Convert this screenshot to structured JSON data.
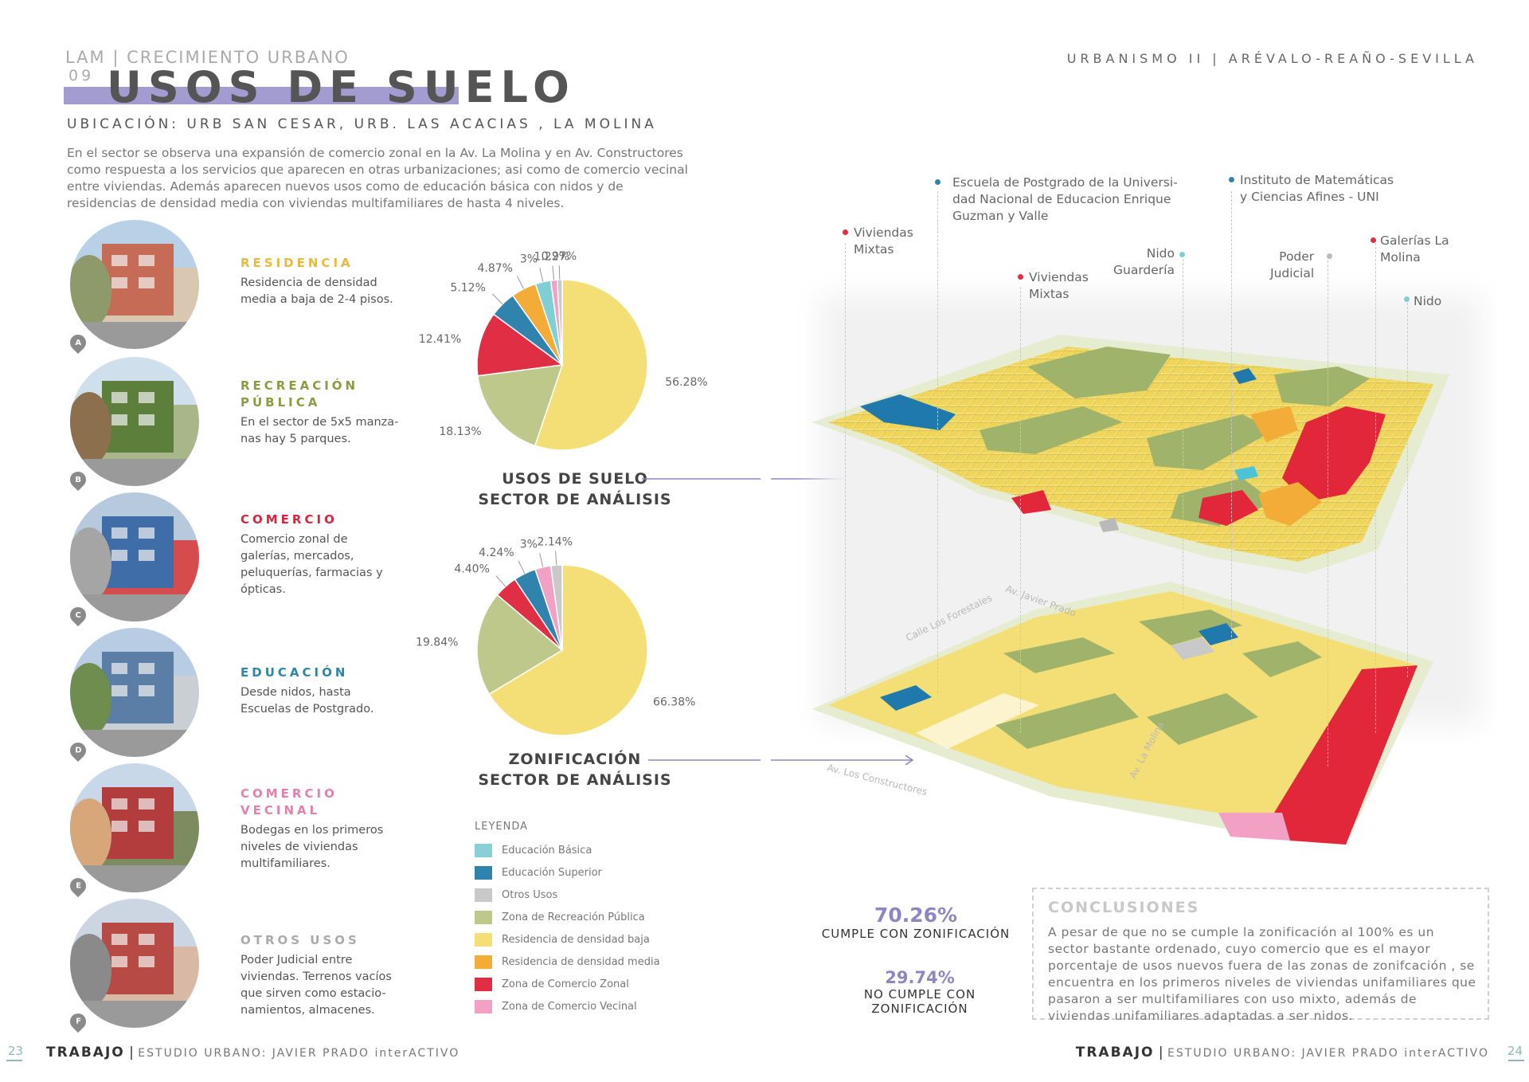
{
  "header": {
    "kicker": "LAM | CRECIMIENTO URBANO",
    "number": "09",
    "title": "USOS DE SUELO",
    "top_right": "URBANISMO II | ARÉVALO-REAÑO-SEVILLA",
    "location": "UBICACIÓN: URB SAN CESAR, URB. LAS ACACIAS , LA MOLINA",
    "intro": "En el sector se observa una expansión de comercio zonal en la Av. La Molina y en Av. Constructores como respuesta a los servicios que aparecen en otras urbanizaciones; asi como de comercio vecinal entre viviendas. Además aparecen nuevos usos como de educación básica con nidos y de residencias de densidad media con viviendas multifamiliares de hasta 4 niveles."
  },
  "categories": [
    {
      "marker": "A",
      "head": [
        "RESIDENCIA"
      ],
      "text": [
        "Residencia de densidad",
        "media a baja de 2-4 pisos."
      ],
      "color": "#e9b93a"
    },
    {
      "marker": "B",
      "head": [
        "RECREACIÓN",
        "PÚBLICA"
      ],
      "text": [
        "En el sector de 5x5 manza-",
        "nas hay 5 parques."
      ],
      "color": "#8e9a3f"
    },
    {
      "marker": "C",
      "head": [
        "COMERCIO"
      ],
      "text": [
        "Comercio zonal de",
        "galerías, mercados,",
        "peluquerías, farmacias y",
        "ópticas."
      ],
      "color": "#d5263e"
    },
    {
      "marker": "D",
      "head": [
        "EDUCACIÓN"
      ],
      "text": [
        "Desde nidos, hasta",
        "Escuelas de Postgrado."
      ],
      "color": "#2d86a8"
    },
    {
      "marker": "E",
      "head": [
        "COMERCIO",
        "VECINAL"
      ],
      "text": [
        "Bodegas en los primeros",
        "niveles de viviendas",
        "multifamiliares."
      ],
      "color": "#e57fab"
    },
    {
      "marker": "F",
      "head": [
        "OTROS USOS"
      ],
      "text": [
        "Poder Judicial entre",
        "viviendas. Terrenos vacíos",
        "que sirven como estacio-",
        "namientos, almacenes."
      ],
      "color": "#aaaaaa"
    }
  ],
  "chart_data": [
    {
      "type": "pie",
      "title": "USOS DE SUELO SECTOR DE ANÁLISIS",
      "title_lines": [
        "USOS DE SUELO",
        "SECTOR DE ANÁLISIS"
      ],
      "slices": [
        {
          "label": "56.28%",
          "value": 56.28,
          "color": "#f4df76"
        },
        {
          "label": "18.13%",
          "value": 18.13,
          "color": "#bdc88a"
        },
        {
          "label": "12.41%",
          "value": 12.41,
          "color": "#e02f45"
        },
        {
          "label": "5.12%",
          "value": 5.12,
          "color": "#2f83ad"
        },
        {
          "label": "4.87%",
          "value": 4.87,
          "color": "#f3ac37"
        },
        {
          "label": "3%",
          "value": 3.0,
          "color": "#7fcfd4"
        },
        {
          "label": "1.22%",
          "value": 1.22,
          "color": "#f2a1c4"
        },
        {
          "label": "0.97%",
          "value": 0.97,
          "color": "#c9c9c9"
        }
      ]
    },
    {
      "type": "pie",
      "title": "ZONIFICACIÓN SECTOR DE ANÁLISIS",
      "title_lines": [
        "ZONIFICACIÓN",
        "SECTOR DE ANÁLISIS"
      ],
      "slices": [
        {
          "label": "66.38%",
          "value": 66.38,
          "color": "#f4df76"
        },
        {
          "label": "19.84%",
          "value": 19.84,
          "color": "#bdc88a"
        },
        {
          "label": "4.40%",
          "value": 4.4,
          "color": "#e02f45"
        },
        {
          "label": "4.24%",
          "value": 4.24,
          "color": "#2f83ad"
        },
        {
          "label": "3%",
          "value": 3.0,
          "color": "#f2a1c4"
        },
        {
          "label": "2.14%",
          "value": 2.14,
          "color": "#c9c9c9"
        }
      ]
    }
  ],
  "legend": {
    "head": "LEYENDA",
    "items": [
      {
        "label": "Educación Básica",
        "color": "#88cfd6"
      },
      {
        "label": "Educación Superior",
        "color": "#2f83ad"
      },
      {
        "label": "Otros Usos",
        "color": "#c9c9c9"
      },
      {
        "label": "Zona de Recreación Pública",
        "color": "#bdc88a"
      },
      {
        "label": "Residencia de densidad baja",
        "color": "#f4df76"
      },
      {
        "label": "Residencia de densidad media",
        "color": "#f3ac37"
      },
      {
        "label": "Zona de Comercio Zonal",
        "color": "#e02f45"
      },
      {
        "label": "Zona de Comercio Vecinal",
        "color": "#f2a1c4"
      }
    ]
  },
  "map": {
    "labels": {
      "viviendas_mixtas_1": [
        "Viviendas",
        "Mixtas"
      ],
      "escuela": [
        "Escuela de Postgrado de la Universi-",
        "dad Nacional de Educacion Enrique",
        "Guzman y Valle"
      ],
      "viviendas_mixtas_2": [
        "Viviendas",
        "Mixtas"
      ],
      "nido_guarderia": [
        "Nido",
        "Guardería"
      ],
      "instituto": [
        "Instituto de Matemáticas",
        "y Ciencias Afines - UNI"
      ],
      "poder_judicial": [
        "Poder",
        "Judicial"
      ],
      "galerias": [
        "Galerías La",
        "Molina"
      ],
      "nido": [
        "Nido"
      ]
    },
    "streets": {
      "los_forestales": "Calle Los Forestales",
      "javier_prado": "Av. Javier Prado",
      "la_molina": "Av. La Molina",
      "los_constructores": "Av. Los Constructores"
    }
  },
  "stats": {
    "cumple_pct": "70.26%",
    "cumple_label": "CUMPLE CON ZONIFICACIÓN",
    "no_cumple_pct": "29.74%",
    "no_cumple_label": "NO CUMPLE CON ZONIFICACIÓN"
  },
  "conclusions": {
    "head": "CONCLUSIONES",
    "text": "A pesar de que no se cumple la zonificación al 100% es un sector bastante ordenado, cuyo comercio que es el mayor porcentaje de usos nuevos fuera de las zonas de zonifcación , se encuentra en los primeros niveles de viviendas unifamiliares que pasaron a ser multifamiliares con uso mixto, además de viviendas unifamiliares adaptadas a ser nidos."
  },
  "footer": {
    "left_page": "23",
    "left_bold": "TRABAJO",
    "left_sub": "ESTUDIO URBANO: JAVIER PRADO interACTIVO",
    "right_bold": "TRABAJO",
    "right_sub": "ESTUDIO URBANO: JAVIER PRADO interACTIVO",
    "right_page": "24"
  }
}
